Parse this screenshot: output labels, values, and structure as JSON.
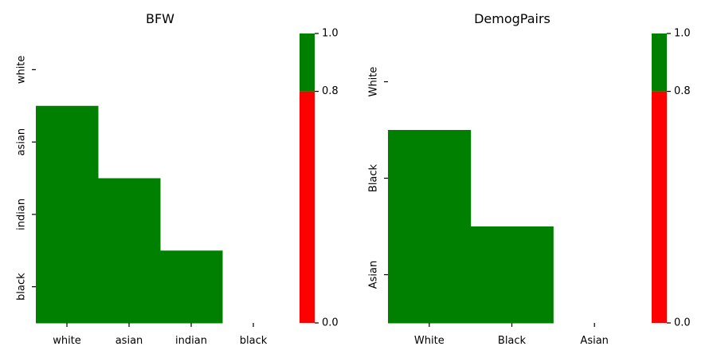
{
  "chart_data": [
    {
      "type": "heatmap",
      "title": "BFW",
      "x_categories": [
        "white",
        "asian",
        "indian",
        "black"
      ],
      "y_categories": [
        "white",
        "asian",
        "indian",
        "black"
      ],
      "mask": "upper-triangle-including-diagonal",
      "cells": [
        {
          "row": "asian",
          "col": "white",
          "value": 1.0
        },
        {
          "row": "indian",
          "col": "white",
          "value": 1.0
        },
        {
          "row": "indian",
          "col": "asian",
          "value": 1.0
        },
        {
          "row": "black",
          "col": "white",
          "value": 1.0
        },
        {
          "row": "black",
          "col": "asian",
          "value": 1.0
        },
        {
          "row": "black",
          "col": "indian",
          "value": 1.0
        }
      ],
      "colorbar": {
        "ticks": [
          "0.0",
          "0.8",
          "1.0"
        ],
        "bands": [
          {
            "from": 0.0,
            "to": 0.8,
            "color": "#ff0000"
          },
          {
            "from": 0.8,
            "to": 1.0,
            "color": "#008000"
          }
        ]
      }
    },
    {
      "type": "heatmap",
      "title": "DemogPairs",
      "x_categories": [
        "White",
        "Black",
        "Asian"
      ],
      "y_categories": [
        "White",
        "Black",
        "Asian"
      ],
      "mask": "upper-triangle-including-diagonal",
      "cells": [
        {
          "row": "Black",
          "col": "White",
          "value": 1.0
        },
        {
          "row": "Asian",
          "col": "White",
          "value": 1.0
        },
        {
          "row": "Asian",
          "col": "Black",
          "value": 1.0
        }
      ],
      "colorbar": {
        "ticks": [
          "0.0",
          "0.8",
          "1.0"
        ],
        "bands": [
          {
            "from": 0.0,
            "to": 0.8,
            "color": "#ff0000"
          },
          {
            "from": 0.8,
            "to": 1.0,
            "color": "#008000"
          }
        ]
      }
    }
  ]
}
